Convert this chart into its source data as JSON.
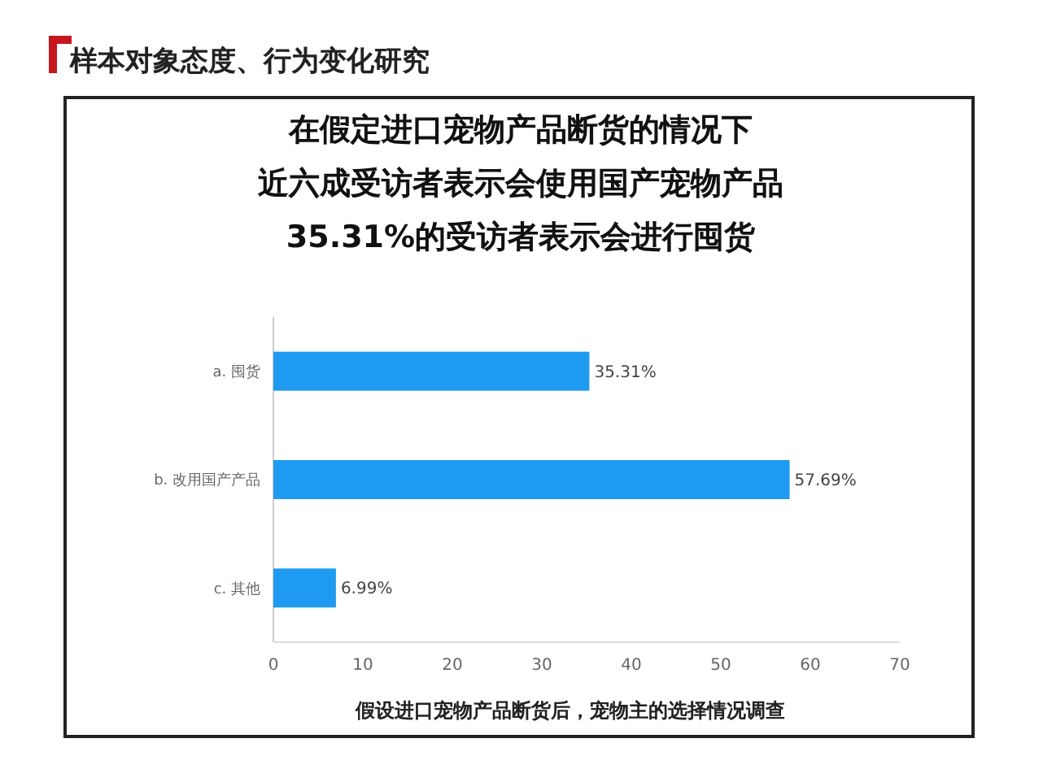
{
  "chart_data": {
    "type": "bar",
    "orientation": "horizontal",
    "title": "样本对象态度、行为变化研究",
    "subtitle": "在假定进口宠物产品断货的情况下近六成受访者表示会使用国产宠物产品35.31%的受访者表示会进行囤货",
    "xlabel": "假设进口宠物产品断货后，宠物主的选择情况调查",
    "categories": [
      "a. 囤货",
      "b. 改用国产产品",
      "c. 其他"
    ],
    "values": [
      35.31,
      57.69,
      6.99
    ],
    "value_labels": [
      "35.31%",
      "57.69%",
      "6.99%"
    ],
    "color": "#1e9bf0",
    "xlim": [
      0,
      70
    ],
    "xticks": [
      0,
      10,
      20,
      30,
      40,
      50,
      60,
      70
    ]
  }
}
